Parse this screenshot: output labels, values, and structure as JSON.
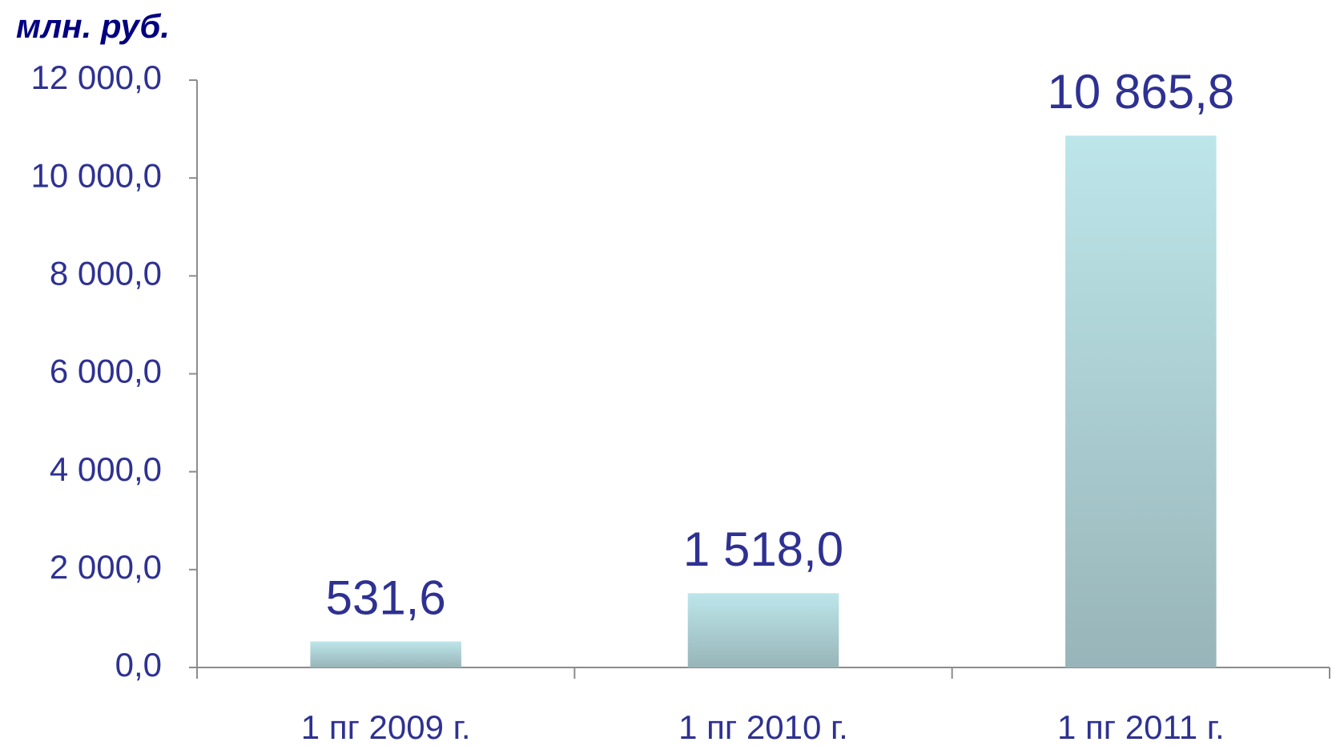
{
  "chart_data": {
    "type": "bar",
    "title": "млн. руб.",
    "categories": [
      "1 пг 2009 г.",
      "1 пг 2010 г.",
      "1 пг 2011 г."
    ],
    "values": [
      531.6,
      1518.0,
      10865.8
    ],
    "value_labels": [
      "531,6",
      "1 518,0",
      "10 865,8"
    ],
    "color": "#bde6ea",
    "ylim": [
      0,
      12000
    ],
    "yticks": [
      {
        "value": 0,
        "label": "0,0"
      },
      {
        "value": 2000,
        "label": "2 000,0"
      },
      {
        "value": 4000,
        "label": "4 000,0"
      },
      {
        "value": 6000,
        "label": "6 000,0"
      },
      {
        "value": 8000,
        "label": "8 000,0"
      },
      {
        "value": 10000,
        "label": "10 000,0"
      },
      {
        "value": 12000,
        "label": "12 000,0"
      }
    ],
    "grid": false
  }
}
